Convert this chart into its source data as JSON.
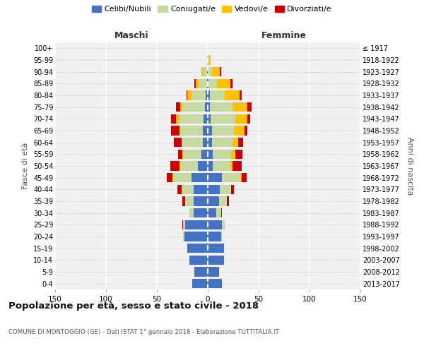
{
  "age_groups": [
    "0-4",
    "5-9",
    "10-14",
    "15-19",
    "20-24",
    "25-29",
    "30-34",
    "35-39",
    "40-44",
    "45-49",
    "50-54",
    "55-59",
    "60-64",
    "65-69",
    "70-74",
    "75-79",
    "80-84",
    "85-89",
    "90-94",
    "95-99",
    "100+"
  ],
  "birth_years": [
    "2013-2017",
    "2008-2012",
    "2003-2007",
    "1998-2002",
    "1993-1997",
    "1988-1992",
    "1983-1987",
    "1978-1982",
    "1973-1977",
    "1968-1972",
    "1963-1967",
    "1958-1962",
    "1953-1957",
    "1948-1952",
    "1943-1947",
    "1938-1942",
    "1933-1937",
    "1928-1932",
    "1923-1927",
    "1918-1922",
    "≤ 1917"
  ],
  "maschi": {
    "celibi": [
      15,
      13,
      18,
      20,
      23,
      22,
      14,
      14,
      14,
      16,
      10,
      6,
      5,
      5,
      4,
      3,
      2,
      1,
      1,
      0,
      0
    ],
    "coniugati": [
      0,
      0,
      0,
      0,
      1,
      2,
      4,
      8,
      12,
      18,
      17,
      18,
      20,
      22,
      24,
      22,
      14,
      8,
      3,
      0,
      0
    ],
    "vedovi": [
      0,
      0,
      0,
      0,
      0,
      0,
      0,
      0,
      0,
      1,
      1,
      1,
      1,
      1,
      3,
      2,
      4,
      3,
      2,
      1,
      0
    ],
    "divorziati": [
      0,
      0,
      0,
      0,
      0,
      1,
      0,
      3,
      4,
      5,
      9,
      4,
      7,
      8,
      5,
      4,
      1,
      1,
      0,
      0,
      0
    ]
  },
  "femmine": {
    "nubili": [
      14,
      11,
      16,
      16,
      13,
      14,
      8,
      11,
      12,
      14,
      5,
      5,
      4,
      4,
      3,
      2,
      2,
      1,
      0,
      0,
      0
    ],
    "coniugate": [
      0,
      0,
      0,
      0,
      1,
      3,
      5,
      8,
      11,
      18,
      17,
      18,
      20,
      22,
      24,
      22,
      15,
      8,
      4,
      1,
      0
    ],
    "vedove": [
      0,
      0,
      0,
      0,
      0,
      0,
      0,
      0,
      0,
      1,
      2,
      4,
      6,
      10,
      12,
      15,
      14,
      13,
      8,
      2,
      0
    ],
    "divorziate": [
      0,
      0,
      0,
      0,
      0,
      0,
      1,
      2,
      3,
      5,
      9,
      7,
      5,
      3,
      3,
      4,
      2,
      2,
      1,
      0,
      0
    ]
  },
  "colors": {
    "celibi": "#4472c4",
    "coniugati": "#c5d9a0",
    "vedovi": "#ffc000",
    "divorziati": "#cc0000"
  },
  "xlim": 150,
  "title": "Popolazione per età, sesso e stato civile - 2018",
  "subtitle": "COMUNE DI MONTOGGIO (GE) - Dati ISTAT 1° gennaio 2018 - Elaborazione TUTTITALIA.IT",
  "ylabel_left": "Fasce di età",
  "ylabel_right": "Anni di nascita",
  "xlabel_maschi": "Maschi",
  "xlabel_femmine": "Femmine",
  "legend_labels": [
    "Celibi/Nubili",
    "Coniugati/e",
    "Vedovi/e",
    "Divorziati/e"
  ],
  "bg_color": "#f0f0f0"
}
